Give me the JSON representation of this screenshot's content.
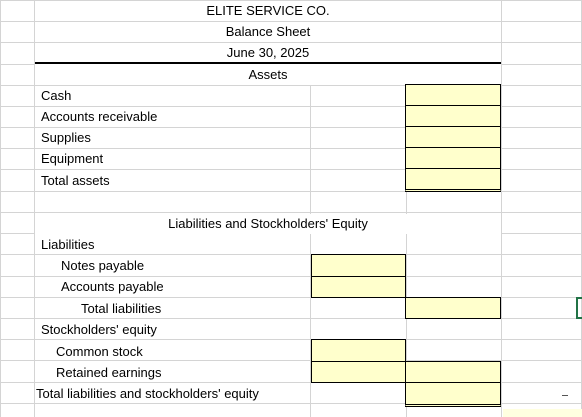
{
  "header": {
    "company": "ELITE SERVICE CO.",
    "statement": "Balance Sheet",
    "date": "June 30, 2025",
    "assets_heading": "Assets"
  },
  "assets": [
    {
      "label": "Cash",
      "value": ""
    },
    {
      "label": "Accounts receivable",
      "value": ""
    },
    {
      "label": "Supplies",
      "value": ""
    },
    {
      "label": "Equipment",
      "value": ""
    },
    {
      "label": "Total assets",
      "value": ""
    }
  ],
  "liabilities_section": {
    "heading": "Liabilities and Stockholders' Equity",
    "liabilities_label": "Liabilities",
    "notes_payable": "Notes payable",
    "accounts_payable": "Accounts payable",
    "total_liabilities": "Total liabilities",
    "equity_label": "Stockholders' equity",
    "common_stock": "Common stock",
    "retained_earnings": "Retained earnings",
    "total_liab_equity": "Total liabilities and stockholders' equity"
  },
  "colors": {
    "input_fill": "#ffffcc",
    "grid": "#d4d4d4",
    "selection": "#217346"
  }
}
